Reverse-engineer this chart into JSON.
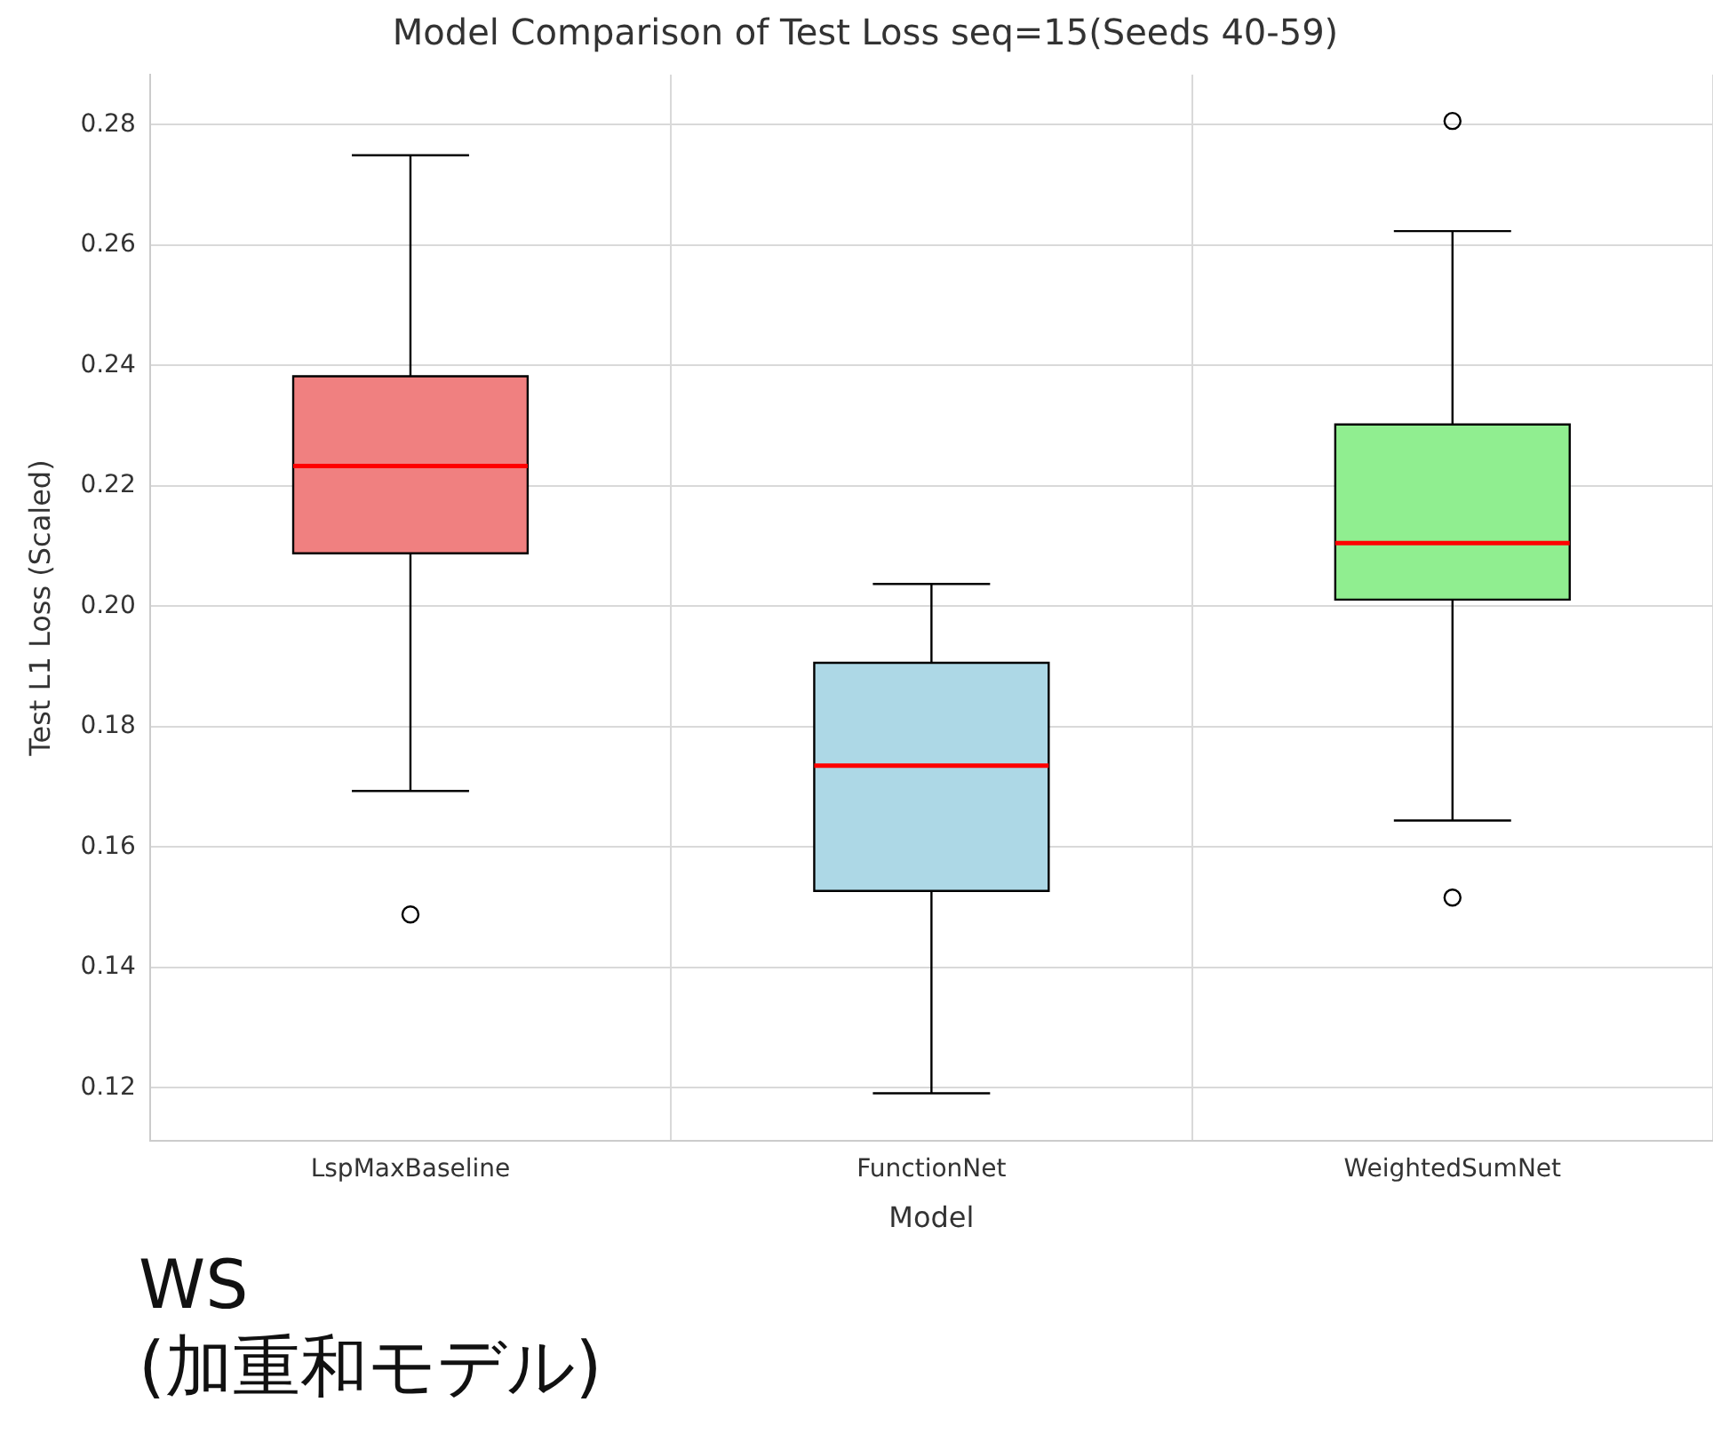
{
  "chart_data": {
    "type": "box",
    "title": "Model Comparison of Test Loss seq=15(Seeds 40-59)",
    "xlabel": "Model",
    "ylabel": "Test L1 Loss (Scaled)",
    "categories": [
      "LspMaxBaseline",
      "FunctionNet",
      "WeightedSumNet"
    ],
    "colors": [
      "#f08080",
      "#add8e6",
      "#90ee90"
    ],
    "boxes": [
      {
        "low": 0.1693,
        "q1": 0.2088,
        "median": 0.2233,
        "q3": 0.2382,
        "high": 0.2749,
        "outliers": [
          0.1488
        ]
      },
      {
        "low": 0.1191,
        "q1": 0.1527,
        "median": 0.1735,
        "q3": 0.1906,
        "high": 0.2037
      },
      {
        "low": 0.1644,
        "q1": 0.2011,
        "median": 0.2105,
        "q3": 0.2302,
        "high": 0.2623,
        "outliers": [
          0.2806,
          0.1516
        ]
      }
    ],
    "ylim": [
      0.1112,
      0.2883
    ],
    "yticks": [
      0.12,
      0.14,
      0.16,
      0.18,
      {
        "value": 0.2,
        "label": "0.20"
      },
      0.22,
      0.24,
      0.26,
      0.28
    ],
    "grid": true,
    "legend": false,
    "annotations": [
      "WS",
      "(加重和モデル)"
    ]
  }
}
